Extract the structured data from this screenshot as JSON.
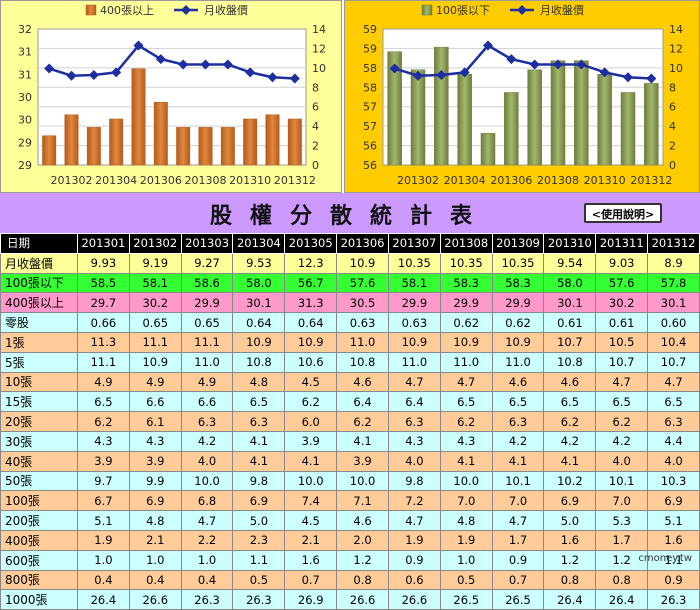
{
  "page_title": "股權分散統計表",
  "help_label": "<使用說明>",
  "watermark": "cmoney.tw",
  "colors": {
    "bar_left": "#e0883c",
    "bar_right": "#a3b86c",
    "line": "#1c2ea0",
    "left_bg": "#ffff99",
    "right_bg": "#ffcc00"
  },
  "chart_data": [
    {
      "type": "bar",
      "legend": {
        "bar": "400張以上",
        "line": "月收盤價"
      },
      "categories": [
        "201301",
        "201302",
        "201303",
        "201304",
        "201305",
        "201306",
        "201307",
        "201308",
        "201309",
        "201310",
        "201311",
        "201312"
      ],
      "x_tick_labels": [
        "201302",
        "201304",
        "201306",
        "201308",
        "201310",
        "201312"
      ],
      "series": [
        {
          "name": "400張以上",
          "type": "bar",
          "axis": "left",
          "values": [
            29.7,
            30.2,
            29.9,
            30.1,
            31.3,
            30.5,
            29.9,
            29.9,
            29.9,
            30.1,
            30.2,
            30.1
          ]
        },
        {
          "name": "月收盤價",
          "type": "line",
          "axis": "right",
          "values": [
            9.93,
            9.19,
            9.27,
            9.53,
            12.3,
            10.9,
            10.35,
            10.35,
            10.35,
            9.54,
            9.03,
            8.9
          ]
        }
      ],
      "ylim_left": [
        29,
        32.25
      ],
      "left_tick_labels": [
        "29",
        "29",
        "30",
        "30",
        "31",
        "31",
        "32"
      ],
      "ylim_right": [
        0,
        14
      ],
      "right_tick_labels": [
        "0",
        "2",
        "4",
        "6",
        "8",
        "10",
        "12",
        "14"
      ]
    },
    {
      "type": "bar",
      "legend": {
        "bar": "100張以下",
        "line": "月收盤價"
      },
      "categories": [
        "201301",
        "201302",
        "201303",
        "201304",
        "201305",
        "201306",
        "201307",
        "201308",
        "201309",
        "201310",
        "201311",
        "201312"
      ],
      "x_tick_labels": [
        "201302",
        "201304",
        "201306",
        "201308",
        "201310",
        "201312"
      ],
      "series": [
        {
          "name": "100張以下",
          "type": "bar",
          "axis": "left",
          "values": [
            58.5,
            58.1,
            58.6,
            58.0,
            56.7,
            57.6,
            58.1,
            58.3,
            58.3,
            58.0,
            57.6,
            57.8
          ]
        },
        {
          "name": "月收盤價",
          "type": "line",
          "axis": "right",
          "values": [
            9.93,
            9.19,
            9.27,
            9.53,
            12.3,
            10.9,
            10.35,
            10.35,
            10.35,
            9.54,
            9.03,
            8.9
          ]
        }
      ],
      "ylim_left": [
        56,
        59
      ],
      "left_tick_labels": [
        "56",
        "56",
        "57",
        "57",
        "58",
        "58",
        "59",
        "59"
      ],
      "ylim_right": [
        0,
        14
      ],
      "right_tick_labels": [
        "0",
        "2",
        "4",
        "6",
        "8",
        "10",
        "12",
        "14"
      ]
    }
  ],
  "table": {
    "header_label": "日期",
    "columns": [
      "201301",
      "201302",
      "201303",
      "201304",
      "201305",
      "201306",
      "201307",
      "201308",
      "201309",
      "201310",
      "201311",
      "201312"
    ],
    "rows": [
      {
        "label": "月收盤價",
        "style": "price",
        "values": [
          "9.93",
          "9.19",
          "9.27",
          "9.53",
          "12.3",
          "10.9",
          "10.35",
          "10.35",
          "10.35",
          "9.54",
          "9.03",
          "8.9"
        ]
      },
      {
        "label": "100張以下",
        "style": "lo",
        "values": [
          "58.5",
          "58.1",
          "58.6",
          "58.0",
          "56.7",
          "57.6",
          "58.1",
          "58.3",
          "58.3",
          "58.0",
          "57.6",
          "57.8"
        ]
      },
      {
        "label": "400張以上",
        "style": "hi",
        "values": [
          "29.7",
          "30.2",
          "29.9",
          "30.1",
          "31.3",
          "30.5",
          "29.9",
          "29.9",
          "29.9",
          "30.1",
          "30.2",
          "30.1"
        ]
      },
      {
        "label": "零股",
        "style": "cyan",
        "values": [
          "0.66",
          "0.65",
          "0.65",
          "0.64",
          "0.64",
          "0.63",
          "0.63",
          "0.62",
          "0.62",
          "0.61",
          "0.61",
          "0.60"
        ]
      },
      {
        "label": "1張",
        "style": "orange",
        "values": [
          "11.3",
          "11.1",
          "11.1",
          "10.9",
          "10.9",
          "11.0",
          "10.9",
          "10.9",
          "10.9",
          "10.7",
          "10.5",
          "10.4"
        ]
      },
      {
        "label": "5張",
        "style": "cyan",
        "values": [
          "11.1",
          "10.9",
          "11.0",
          "10.8",
          "10.6",
          "10.8",
          "11.0",
          "11.0",
          "11.0",
          "10.8",
          "10.7",
          "10.7"
        ]
      },
      {
        "label": "10張",
        "style": "orange",
        "values": [
          "4.9",
          "4.9",
          "4.9",
          "4.8",
          "4.5",
          "4.6",
          "4.7",
          "4.7",
          "4.6",
          "4.6",
          "4.7",
          "4.7"
        ]
      },
      {
        "label": "15張",
        "style": "cyan",
        "values": [
          "6.5",
          "6.6",
          "6.6",
          "6.5",
          "6.2",
          "6.4",
          "6.4",
          "6.5",
          "6.5",
          "6.5",
          "6.5",
          "6.5"
        ]
      },
      {
        "label": "20張",
        "style": "orange",
        "values": [
          "6.2",
          "6.1",
          "6.3",
          "6.3",
          "6.0",
          "6.2",
          "6.3",
          "6.2",
          "6.3",
          "6.2",
          "6.2",
          "6.3"
        ]
      },
      {
        "label": "30張",
        "style": "cyan",
        "values": [
          "4.3",
          "4.3",
          "4.2",
          "4.1",
          "3.9",
          "4.1",
          "4.3",
          "4.3",
          "4.2",
          "4.2",
          "4.2",
          "4.4"
        ]
      },
      {
        "label": "40張",
        "style": "orange",
        "values": [
          "3.9",
          "3.9",
          "4.0",
          "4.1",
          "4.1",
          "3.9",
          "4.0",
          "4.1",
          "4.1",
          "4.1",
          "4.0",
          "4.0"
        ]
      },
      {
        "label": "50張",
        "style": "cyan",
        "values": [
          "9.7",
          "9.9",
          "10.0",
          "9.8",
          "10.0",
          "10.0",
          "9.8",
          "10.0",
          "10.1",
          "10.2",
          "10.1",
          "10.3"
        ]
      },
      {
        "label": "100張",
        "style": "orange",
        "values": [
          "6.7",
          "6.9",
          "6.8",
          "6.9",
          "7.4",
          "7.1",
          "7.2",
          "7.0",
          "7.0",
          "6.9",
          "7.0",
          "6.9"
        ]
      },
      {
        "label": "200張",
        "style": "cyan",
        "values": [
          "5.1",
          "4.8",
          "4.7",
          "5.0",
          "4.5",
          "4.6",
          "4.7",
          "4.8",
          "4.7",
          "5.0",
          "5.3",
          "5.1"
        ]
      },
      {
        "label": "400張",
        "style": "orange",
        "values": [
          "1.9",
          "2.1",
          "2.2",
          "2.3",
          "2.1",
          "2.0",
          "1.9",
          "1.9",
          "1.7",
          "1.6",
          "1.7",
          "1.6"
        ]
      },
      {
        "label": "600張",
        "style": "cyan",
        "values": [
          "1.0",
          "1.0",
          "1.0",
          "1.1",
          "1.6",
          "1.2",
          "0.9",
          "1.0",
          "0.9",
          "1.2",
          "1.2",
          "1.1"
        ]
      },
      {
        "label": "800張",
        "style": "orange",
        "values": [
          "0.4",
          "0.4",
          "0.4",
          "0.5",
          "0.7",
          "0.8",
          "0.6",
          "0.5",
          "0.7",
          "0.8",
          "0.8",
          "0.9"
        ]
      },
      {
        "label": "1000張",
        "style": "cyan",
        "values": [
          "26.4",
          "26.6",
          "26.3",
          "26.3",
          "26.9",
          "26.6",
          "26.6",
          "26.5",
          "26.5",
          "26.4",
          "26.4",
          "26.3"
        ]
      }
    ]
  }
}
